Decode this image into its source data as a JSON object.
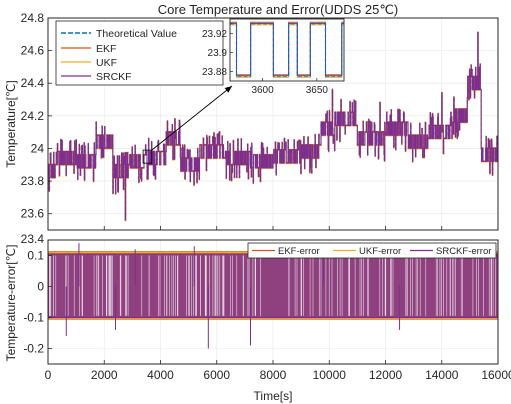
{
  "figure": {
    "title": "Core Temperature and Error(UDDS 25℃)",
    "xlabel": "Time[s]"
  },
  "colors": {
    "theoretical": "#0072BD",
    "ekf": "#D95319",
    "ukf": "#EDB120",
    "srckf": "#7E2F8E",
    "axis": "#262626",
    "grid": "#e6e6e6",
    "zoom_arrow": "#000000"
  },
  "chart_data": [
    {
      "type": "line",
      "id": "temperature",
      "title": "Core Temperature and Error(UDDS 25℃)",
      "xlabel": "",
      "ylabel": "Temperature[℃]",
      "xlim": [
        0,
        16000
      ],
      "ylim": [
        23.5,
        24.8
      ],
      "x_ticks": [
        0,
        2000,
        4000,
        6000,
        8000,
        10000,
        12000,
        14000,
        16000
      ],
      "y_ticks": [
        23.6,
        23.8,
        24,
        24.2,
        24.4,
        24.6,
        24.8
      ],
      "y_tick_labels": [
        "23.6",
        "23.8",
        "24",
        "24.2",
        "24.4",
        "24.6",
        "24.8"
      ],
      "grid": true,
      "legend_position": "top-left",
      "series": [
        {
          "name": "Theoretical Value",
          "style": "dashed",
          "color_key": "theoretical"
        },
        {
          "name": "EKF",
          "style": "solid",
          "color_key": "ekf"
        },
        {
          "name": "UKF",
          "style": "solid",
          "color_key": "ukf"
        },
        {
          "name": "SRCKF",
          "style": "solid",
          "color_key": "srckf"
        }
      ],
      "base_levels": [
        {
          "t0": 0,
          "t1": 300,
          "level": 23.86
        },
        {
          "t0": 300,
          "t1": 1000,
          "level": 23.94
        },
        {
          "t0": 1000,
          "t1": 1700,
          "level": 23.92
        },
        {
          "t0": 1700,
          "t1": 2300,
          "level": 24.04
        },
        {
          "t0": 2300,
          "t1": 2900,
          "level": 23.86
        },
        {
          "t0": 2900,
          "t1": 3500,
          "level": 23.92
        },
        {
          "t0": 3500,
          "t1": 4200,
          "level": 23.94
        },
        {
          "t0": 4200,
          "t1": 4700,
          "level": 24.06
        },
        {
          "t0": 4700,
          "t1": 5400,
          "level": 23.9
        },
        {
          "t0": 5400,
          "t1": 6300,
          "level": 23.98
        },
        {
          "t0": 6300,
          "t1": 7200,
          "level": 23.94
        },
        {
          "t0": 7200,
          "t1": 8000,
          "level": 23.92
        },
        {
          "t0": 8000,
          "t1": 9000,
          "level": 23.95
        },
        {
          "t0": 9000,
          "t1": 9700,
          "level": 23.98
        },
        {
          "t0": 9700,
          "t1": 10200,
          "level": 24.12
        },
        {
          "t0": 10200,
          "t1": 11000,
          "level": 24.18
        },
        {
          "t0": 11000,
          "t1": 12000,
          "level": 24.06
        },
        {
          "t0": 12000,
          "t1": 12800,
          "level": 24.12
        },
        {
          "t0": 12800,
          "t1": 13500,
          "level": 24.04
        },
        {
          "t0": 13500,
          "t1": 14400,
          "level": 24.1
        },
        {
          "t0": 14400,
          "t1": 14900,
          "level": 24.2
        },
        {
          "t0": 14900,
          "t1": 15400,
          "level": 24.4
        },
        {
          "t0": 15400,
          "t1": 16000,
          "level": 23.96
        }
      ],
      "spikes": [
        {
          "t": 1000,
          "v": 24.05
        },
        {
          "t": 1700,
          "v": 24.16
        },
        {
          "t": 2750,
          "v": 23.56
        },
        {
          "t": 4500,
          "v": 24.18
        },
        {
          "t": 10100,
          "v": 24.36
        },
        {
          "t": 11800,
          "v": 24.28
        },
        {
          "t": 14000,
          "v": 24.34
        },
        {
          "t": 15280,
          "v": 24.71
        }
      ],
      "inset": {
        "xlim": [
          3570,
          3675
        ],
        "ylim": [
          23.87,
          23.935
        ],
        "x_ticks": [
          3600,
          3650
        ],
        "y_ticks": [
          23.88,
          23.9,
          23.92
        ],
        "y_tick_labels": [
          "23.88",
          "23.9",
          "23.92"
        ],
        "high_level": 23.93,
        "low_level": 23.875,
        "lows": [
          {
            "t0": 3576,
            "t1": 3589
          },
          {
            "t0": 3610,
            "t1": 3624
          },
          {
            "t0": 3632,
            "t1": 3644
          },
          {
            "t0": 3658,
            "t1": 3673
          }
        ]
      },
      "zoom_box": {
        "xlim": [
          3380,
          3690
        ],
        "ylim": [
          23.91,
          23.99
        ]
      }
    },
    {
      "type": "line",
      "id": "error",
      "xlabel": "Time[s]",
      "ylabel": "Temperature-error[℃]",
      "xlim": [
        0,
        16000
      ],
      "ylim": [
        -0.25,
        0.15
      ],
      "x_ticks": [
        0,
        2000,
        4000,
        6000,
        8000,
        10000,
        12000,
        14000,
        16000
      ],
      "y_ticks": [
        -0.2,
        -0.1,
        0,
        0.1
      ],
      "y_tick_labels": [
        "-0.2",
        "-0.1",
        "0",
        "0.1"
      ],
      "extra_top_label": "23.4",
      "grid": true,
      "legend_position": "top-right",
      "series": [
        {
          "name": "EKF-error",
          "color_key": "ekf",
          "range": [
            -0.105,
            0.112
          ]
        },
        {
          "name": "UKF-error",
          "color_key": "ukf",
          "range": [
            -0.103,
            0.11
          ]
        },
        {
          "name": "SRCKF-error",
          "color_key": "srckf",
          "range": [
            -0.1,
            0.105
          ]
        }
      ],
      "spikes": [
        {
          "t": 650,
          "v": -0.16
        },
        {
          "t": 1100,
          "v": 0.14
        },
        {
          "t": 2400,
          "v": -0.14
        },
        {
          "t": 3100,
          "v": 0.12
        },
        {
          "t": 5200,
          "v": 0.13
        },
        {
          "t": 5700,
          "v": -0.2
        },
        {
          "t": 7200,
          "v": -0.19
        },
        {
          "t": 9800,
          "v": 0.12
        },
        {
          "t": 12500,
          "v": -0.14
        }
      ]
    }
  ]
}
